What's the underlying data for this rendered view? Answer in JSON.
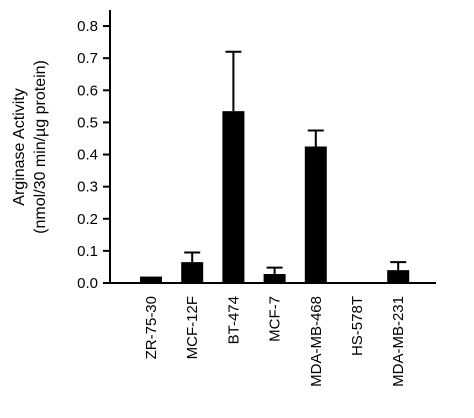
{
  "chart_data": {
    "type": "bar",
    "title": "",
    "ylabel_line1": "Arginase Activity",
    "ylabel_line2": "(nmol/30 min/µg protein)",
    "xlabel": "",
    "ylim": [
      0,
      0.85
    ],
    "yticks": [
      "0.0",
      "0.1",
      "0.2",
      "0.3",
      "0.4",
      "0.5",
      "0.6",
      "0.7",
      "0.8"
    ],
    "categories": [
      "ZR-75-30",
      "MCF-12F",
      "BT-474",
      "MCF-7",
      "MDA-MB-468",
      "HS-578T",
      "MDA-MB-231"
    ],
    "values": [
      0.02,
      0.065,
      0.535,
      0.028,
      0.425,
      0.003,
      0.04
    ],
    "errors": [
      0.0,
      0.03,
      0.185,
      0.02,
      0.05,
      0.0,
      0.025
    ],
    "grid": false,
    "bar_color": "#000000"
  }
}
